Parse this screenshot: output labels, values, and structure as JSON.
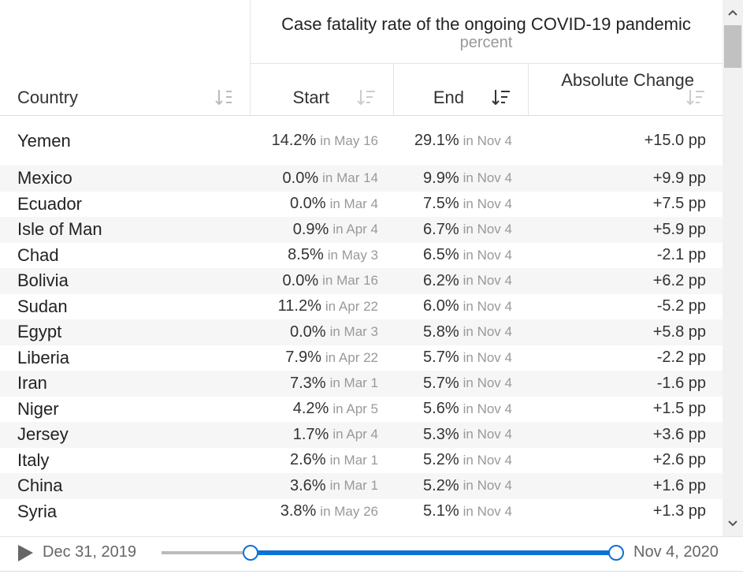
{
  "header": {
    "title": "Case fatality rate of the ongoing COVID-19 pandemic",
    "subtitle": "percent"
  },
  "columns": [
    "Country",
    "Start",
    "End",
    "Absolute Change"
  ],
  "rows": [
    {
      "country": "Yemen",
      "start": {
        "value": "14.2%",
        "date": "in May 16"
      },
      "end": {
        "value": "29.1%",
        "date": "in Nov 4"
      },
      "change": "+15.0 pp"
    },
    {
      "country": "Mexico",
      "start": {
        "value": "0.0%",
        "date": "in Mar 14"
      },
      "end": {
        "value": "9.9%",
        "date": "in Nov 4"
      },
      "change": "+9.9 pp"
    },
    {
      "country": "Ecuador",
      "start": {
        "value": "0.0%",
        "date": "in Mar 4"
      },
      "end": {
        "value": "7.5%",
        "date": "in Nov 4"
      },
      "change": "+7.5 pp"
    },
    {
      "country": "Isle of Man",
      "start": {
        "value": "0.9%",
        "date": "in Apr 4"
      },
      "end": {
        "value": "6.7%",
        "date": "in Nov 4"
      },
      "change": "+5.9 pp"
    },
    {
      "country": "Chad",
      "start": {
        "value": "8.5%",
        "date": "in May 3"
      },
      "end": {
        "value": "6.5%",
        "date": "in Nov 4"
      },
      "change": "-2.1 pp"
    },
    {
      "country": "Bolivia",
      "start": {
        "value": "0.0%",
        "date": "in Mar 16"
      },
      "end": {
        "value": "6.2%",
        "date": "in Nov 4"
      },
      "change": "+6.2 pp"
    },
    {
      "country": "Sudan",
      "start": {
        "value": "11.2%",
        "date": "in Apr 22"
      },
      "end": {
        "value": "6.0%",
        "date": "in Nov 4"
      },
      "change": "-5.2 pp"
    },
    {
      "country": "Egypt",
      "start": {
        "value": "0.0%",
        "date": "in Mar 3"
      },
      "end": {
        "value": "5.8%",
        "date": "in Nov 4"
      },
      "change": "+5.8 pp"
    },
    {
      "country": "Liberia",
      "start": {
        "value": "7.9%",
        "date": "in Apr 22"
      },
      "end": {
        "value": "5.7%",
        "date": "in Nov 4"
      },
      "change": "-2.2 pp"
    },
    {
      "country": "Iran",
      "start": {
        "value": "7.3%",
        "date": "in Mar 1"
      },
      "end": {
        "value": "5.7%",
        "date": "in Nov 4"
      },
      "change": "-1.6 pp"
    },
    {
      "country": "Niger",
      "start": {
        "value": "4.2%",
        "date": "in Apr 5"
      },
      "end": {
        "value": "5.6%",
        "date": "in Nov 4"
      },
      "change": "+1.5 pp"
    },
    {
      "country": "Jersey",
      "start": {
        "value": "1.7%",
        "date": "in Apr 4"
      },
      "end": {
        "value": "5.3%",
        "date": "in Nov 4"
      },
      "change": "+3.6 pp"
    },
    {
      "country": "Italy",
      "start": {
        "value": "2.6%",
        "date": "in Mar 1"
      },
      "end": {
        "value": "5.2%",
        "date": "in Nov 4"
      },
      "change": "+2.6 pp"
    },
    {
      "country": "China",
      "start": {
        "value": "3.6%",
        "date": "in Mar 1"
      },
      "end": {
        "value": "5.2%",
        "date": "in Nov 4"
      },
      "change": "+1.6 pp"
    },
    {
      "country": "Syria",
      "start": {
        "value": "3.8%",
        "date": "in May 26"
      },
      "end": {
        "value": "5.1%",
        "date": "in Nov 4"
      },
      "change": "+1.3 pp"
    }
  ],
  "timeline": {
    "start": "Dec 31, 2019",
    "end": "Nov 4, 2020"
  }
}
